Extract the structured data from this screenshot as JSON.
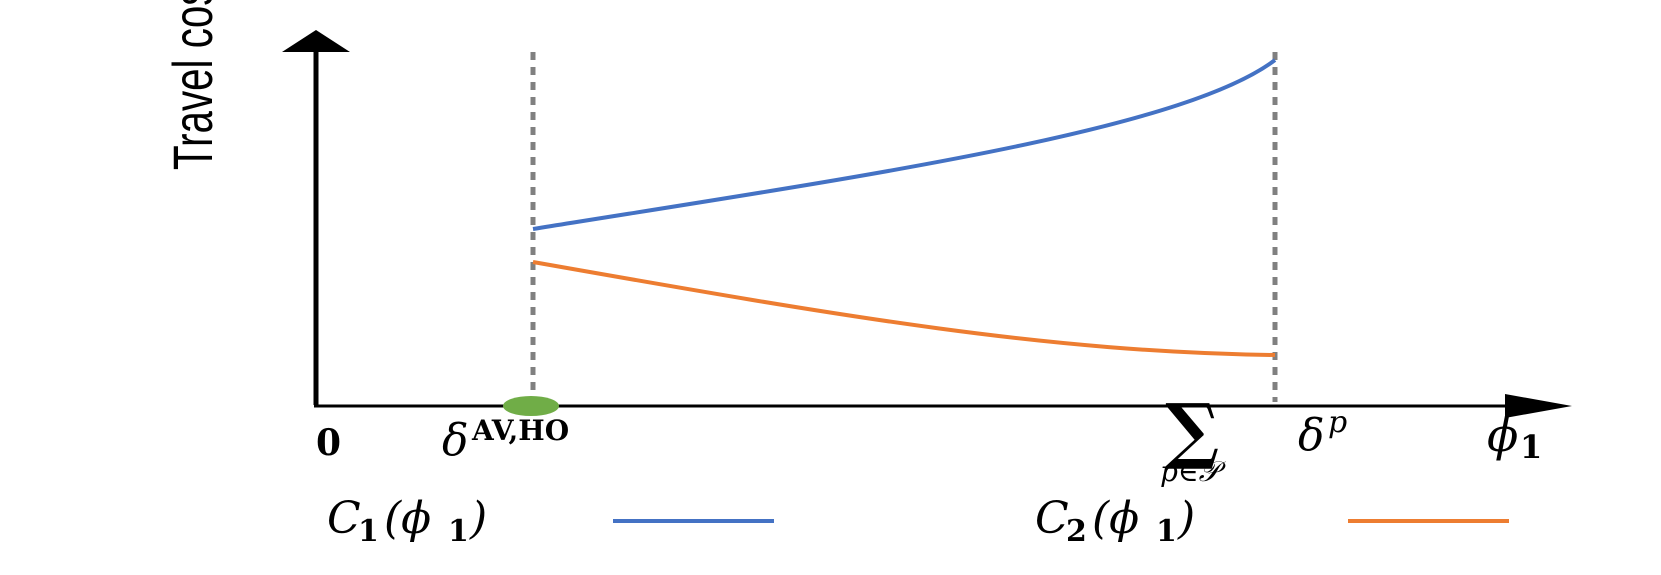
{
  "y_axis_label": "Travel cost",
  "x_axis_symbol": "ϕ",
  "x_axis_subscript": "1",
  "origin_label": "0",
  "lower_bound_symbol": "δ",
  "lower_bound_superscript": "AV,HO",
  "upper_bound_sum": "∑",
  "upper_bound_index": "p∈𝒫",
  "upper_bound_symbol": "δ",
  "upper_bound_superscript": "p",
  "legend": [
    {
      "label_C": "C",
      "label_sub": "1",
      "label_arg": "(ϕ",
      "label_arg_sub": "1",
      "label_close": ")",
      "color": "#4472C4"
    },
    {
      "label_C": "C",
      "label_sub": "2",
      "label_arg": "(ϕ",
      "label_arg_sub": "1",
      "label_close": ")",
      "color": "#ED7D31"
    }
  ],
  "colors": {
    "c1": "#4472C4",
    "c2": "#ED7D31",
    "marker": "#70AD47",
    "bound_lines": "#808080",
    "axes": "#000000"
  }
}
